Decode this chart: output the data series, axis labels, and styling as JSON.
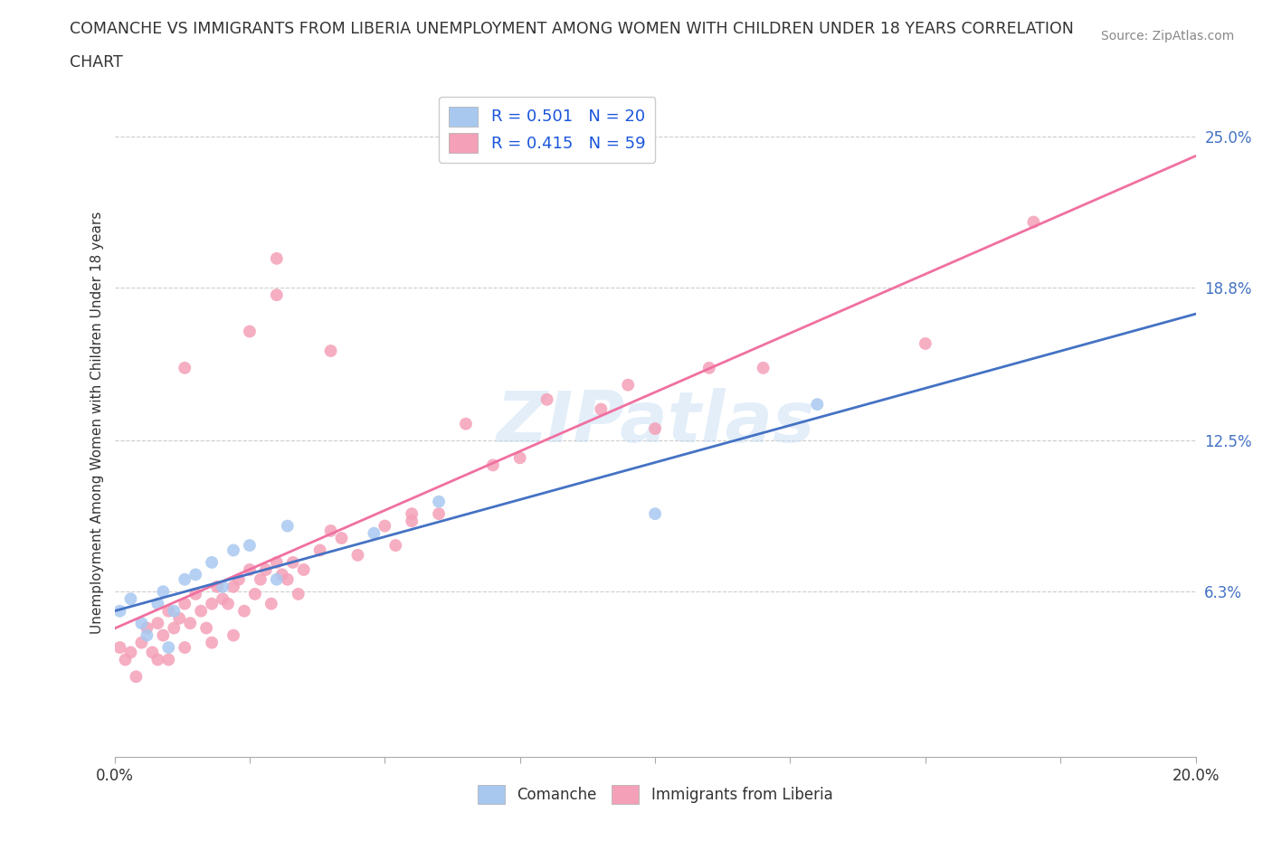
{
  "title_line1": "COMANCHE VS IMMIGRANTS FROM LIBERIA UNEMPLOYMENT AMONG WOMEN WITH CHILDREN UNDER 18 YEARS CORRELATION",
  "title_line2": "CHART",
  "source_text": "Source: ZipAtlas.com",
  "ylabel": "Unemployment Among Women with Children Under 18 years",
  "xlim": [
    0.0,
    0.2
  ],
  "ylim": [
    -0.005,
    0.27
  ],
  "y_tick_labels_right": [
    "6.3%",
    "12.5%",
    "18.8%",
    "25.0%"
  ],
  "y_ticks_right": [
    0.063,
    0.125,
    0.188,
    0.25
  ],
  "legend_labels": [
    "Comanche",
    "Immigrants from Liberia"
  ],
  "comanche_R": "0.501",
  "comanche_N": "20",
  "liberia_R": "0.415",
  "liberia_N": "59",
  "comanche_color": "#a8c8f0",
  "liberia_color": "#f4a0b8",
  "comanche_line_color": "#4472c4",
  "liberia_line_color": "#f070a0",
  "watermark": "ZIPatlas",
  "background_color": "#ffffff",
  "grid_color": "#cccccc",
  "comanche_x": [
    0.001,
    0.003,
    0.005,
    0.006,
    0.008,
    0.009,
    0.01,
    0.011,
    0.013,
    0.015,
    0.018,
    0.02,
    0.022,
    0.025,
    0.03,
    0.032,
    0.048,
    0.06,
    0.1,
    0.13
  ],
  "comanche_y": [
    0.055,
    0.06,
    0.05,
    0.045,
    0.058,
    0.063,
    0.04,
    0.055,
    0.068,
    0.07,
    0.075,
    0.065,
    0.08,
    0.082,
    0.068,
    0.09,
    0.087,
    0.1,
    0.095,
    0.14
  ],
  "liberia_x": [
    0.001,
    0.002,
    0.003,
    0.004,
    0.005,
    0.006,
    0.007,
    0.008,
    0.008,
    0.009,
    0.01,
    0.01,
    0.011,
    0.012,
    0.013,
    0.013,
    0.014,
    0.015,
    0.016,
    0.017,
    0.018,
    0.018,
    0.019,
    0.02,
    0.021,
    0.022,
    0.022,
    0.023,
    0.024,
    0.025,
    0.026,
    0.027,
    0.028,
    0.029,
    0.03,
    0.031,
    0.032,
    0.033,
    0.034,
    0.035,
    0.038,
    0.04,
    0.042,
    0.045,
    0.05,
    0.052,
    0.055,
    0.06,
    0.065,
    0.07,
    0.075,
    0.08,
    0.09,
    0.095,
    0.1,
    0.11,
    0.12,
    0.15,
    0.17
  ],
  "liberia_y": [
    0.04,
    0.035,
    0.038,
    0.028,
    0.042,
    0.048,
    0.038,
    0.05,
    0.035,
    0.045,
    0.055,
    0.035,
    0.048,
    0.052,
    0.04,
    0.058,
    0.05,
    0.062,
    0.055,
    0.048,
    0.058,
    0.042,
    0.065,
    0.06,
    0.058,
    0.065,
    0.045,
    0.068,
    0.055,
    0.072,
    0.062,
    0.068,
    0.072,
    0.058,
    0.075,
    0.07,
    0.068,
    0.075,
    0.062,
    0.072,
    0.08,
    0.088,
    0.085,
    0.078,
    0.09,
    0.082,
    0.092,
    0.095,
    0.132,
    0.115,
    0.118,
    0.142,
    0.138,
    0.148,
    0.13,
    0.155,
    0.155,
    0.165,
    0.215
  ],
  "liberia_extra_x": [
    0.013,
    0.025,
    0.03,
    0.03,
    0.04,
    0.055
  ],
  "liberia_extra_y": [
    0.155,
    0.17,
    0.185,
    0.2,
    0.162,
    0.095
  ]
}
